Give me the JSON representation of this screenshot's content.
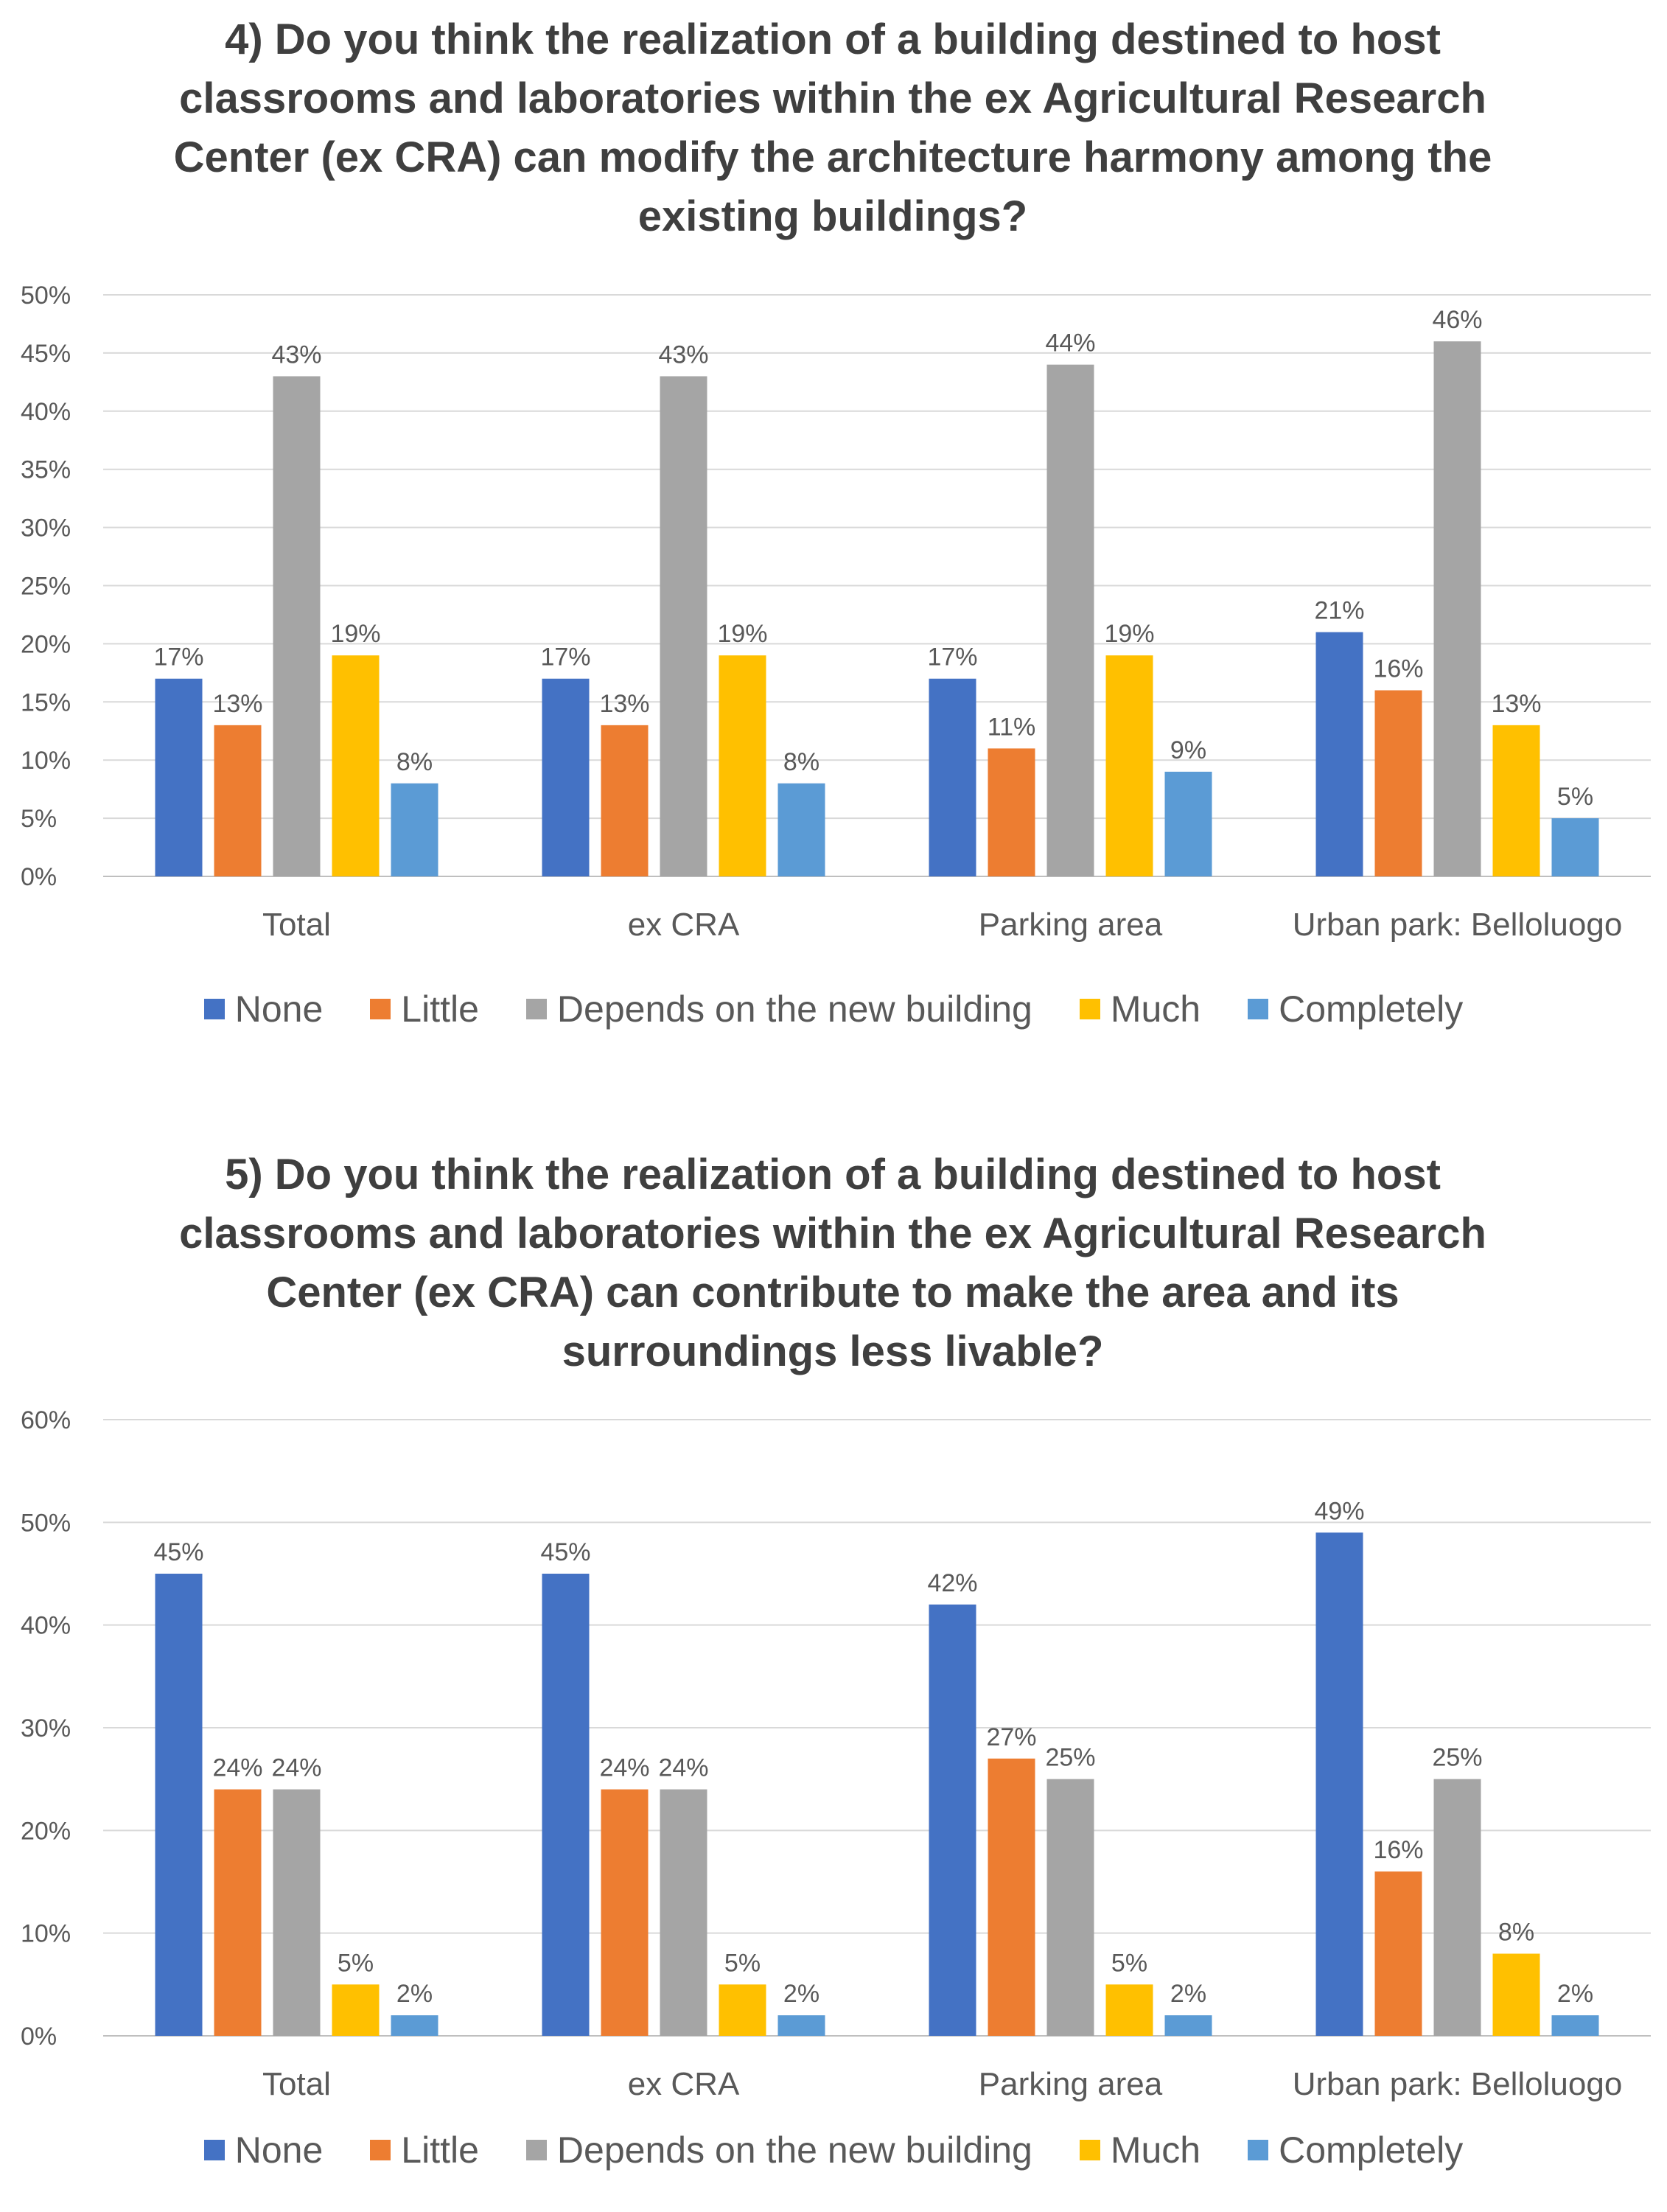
{
  "colors": {
    "None": "#4472c4",
    "Little": "#ed7d31",
    "Depends on the new building": "#a5a5a5",
    "Much": "#ffc000",
    "Completely": "#5b9bd5",
    "grid": "#d9d9d9",
    "text": "#595959"
  },
  "chart_data": [
    {
      "type": "bar",
      "title_lines": [
        "4) Do you think the realization of a building destined to host",
        "classrooms and laboratories within the ex Agricultural Research",
        "Center (ex CRA) can modify the architecture harmony among the",
        "existing buildings?"
      ],
      "categories": [
        "Total",
        "ex CRA",
        "Parking area",
        "Urban park: Belloluogo"
      ],
      "series": [
        {
          "name": "None",
          "values": [
            17,
            17,
            17,
            21
          ],
          "labels": [
            "17%",
            "17%",
            "17%",
            "21%"
          ]
        },
        {
          "name": "Little",
          "values": [
            13,
            13,
            11,
            16
          ],
          "labels": [
            "13%",
            "13%",
            "11%",
            "16%"
          ]
        },
        {
          "name": "Depends on the new building",
          "values": [
            43,
            43,
            44,
            46
          ],
          "labels": [
            "43%",
            "43%",
            "44%",
            "46%"
          ]
        },
        {
          "name": "Much",
          "values": [
            19,
            19,
            19,
            13
          ],
          "labels": [
            "19%",
            "19%",
            "19%",
            "13%"
          ]
        },
        {
          "name": "Completely",
          "values": [
            8,
            8,
            9,
            5
          ],
          "labels": [
            "8%",
            "8%",
            "9%",
            "5%"
          ]
        }
      ],
      "yticks": [
        0,
        5,
        10,
        15,
        20,
        25,
        30,
        35,
        40,
        45,
        50
      ],
      "ytick_labels": [
        "0%",
        "5%",
        "10%",
        "15%",
        "20%",
        "25%",
        "30%",
        "35%",
        "40%",
        "45%",
        "50%"
      ],
      "ylim": [
        0,
        50
      ],
      "legend_position": "bottom",
      "grid": true
    },
    {
      "type": "bar",
      "title_lines": [
        "5) Do you think the realization of a building destined to host",
        "classrooms and laboratories within the ex Agricultural Research",
        "Center (ex CRA) can contribute to make the area and its",
        "surroundings less livable?"
      ],
      "categories": [
        "Total",
        "ex CRA",
        "Parking area",
        "Urban park: Belloluogo"
      ],
      "series": [
        {
          "name": "None",
          "values": [
            45,
            45,
            42,
            49
          ],
          "labels": [
            "45%",
            "45%",
            "42%",
            "49%"
          ]
        },
        {
          "name": "Little",
          "values": [
            24,
            24,
            27,
            16
          ],
          "labels": [
            "24%",
            "24%",
            "27%",
            "16%"
          ]
        },
        {
          "name": "Depends on the new building",
          "values": [
            24,
            24,
            25,
            25
          ],
          "labels": [
            "24%",
            "24%",
            "25%",
            "25%"
          ]
        },
        {
          "name": "Much",
          "values": [
            5,
            5,
            5,
            8
          ],
          "labels": [
            "5%",
            "5%",
            "5%",
            "8%"
          ]
        },
        {
          "name": "Completely",
          "values": [
            2,
            2,
            2,
            2
          ],
          "labels": [
            "2%",
            "2%",
            "2%",
            "2%"
          ]
        }
      ],
      "yticks": [
        0,
        10,
        20,
        30,
        40,
        50,
        60
      ],
      "ytick_labels": [
        "0%",
        "10%",
        "20%",
        "30%",
        "40%",
        "50%",
        "60%"
      ],
      "ylim": [
        0,
        60
      ],
      "legend_position": "bottom",
      "grid": true
    }
  ]
}
